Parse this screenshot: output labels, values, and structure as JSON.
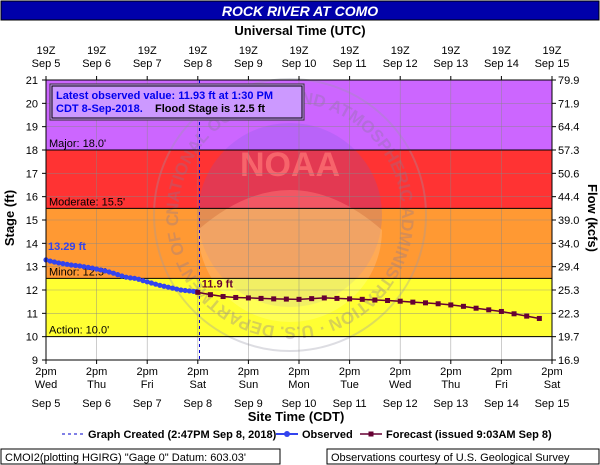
{
  "page": {
    "title": "ROCK RIVER AT COMO",
    "top_axis_title": "Universal Time (UTC)",
    "bottom_axis_title": "Site Time (CDT)",
    "left_axis_title": "Stage (ft)",
    "right_axis_title": "Flow (kcfs)",
    "info_line1": "Latest observed value: 11.93 ft at 1:30 PM",
    "info_line2_date": "CDT 8-Sep-2018.",
    "info_line2_flood": "Flood Stage is 12.5 ft",
    "legend": {
      "created": "Graph Created (2:47PM Sep 8, 2018)",
      "observed": "Observed",
      "forecast": "Forecast (issued 9:03AM Sep 8)"
    },
    "footer_left": "CMOI2(plotting HGIRG) \"Gage 0\" Datum: 603.03'",
    "footer_right": "Observations courtesy of U.S. Geological Survey",
    "watermark": "NATIONAL OCEANIC AND ATMOSPHERIC ADMINISTRATION · U.S. DEPARTMENT OF COMMERCE · NOAA"
  },
  "colors": {
    "title_bar": "#0000aa",
    "major": "#cc66ff",
    "moderate": "#ff3333",
    "minor": "#ff9933",
    "action": "#ffff33",
    "below_action": "#ffffff",
    "observed": "#3344ee",
    "forecast": "#660033",
    "info_box_bg": "#cc99ff"
  },
  "chart_data": {
    "type": "line",
    "title": "ROCK RIVER AT COMO",
    "ylabel": "Stage (ft)",
    "y2label": "Flow (kcfs)",
    "xlabel_bottom": "Site Time (CDT)",
    "xlabel_top": "Universal Time (UTC)",
    "ylim": [
      9,
      21
    ],
    "y_ticks": [
      9,
      10,
      11,
      12,
      13,
      14,
      15,
      16,
      17,
      18,
      19,
      20,
      21
    ],
    "right_ticks": [
      {
        "stage": 9,
        "label": "16.9"
      },
      {
        "stage": 10,
        "label": "19.7"
      },
      {
        "stage": 11,
        "label": "22.3"
      },
      {
        "stage": 12,
        "label": "25.3"
      },
      {
        "stage": 13,
        "label": "29.4"
      },
      {
        "stage": 14,
        "label": "34.0"
      },
      {
        "stage": 15,
        "label": "39.0"
      },
      {
        "stage": 16,
        "label": "44.4"
      },
      {
        "stage": 17,
        "label": "50.6"
      },
      {
        "stage": 18,
        "label": "57.3"
      },
      {
        "stage": 19,
        "label": "64.4"
      },
      {
        "stage": 20,
        "label": "71.9"
      },
      {
        "stage": 21,
        "label": "79.9"
      }
    ],
    "x_range_hours": [
      0,
      240
    ],
    "x_ticks_bottom": [
      {
        "h": 0,
        "time": "2pm",
        "day": "Wed",
        "date": "Sep 5"
      },
      {
        "h": 24,
        "time": "2pm",
        "day": "Thu",
        "date": "Sep 6"
      },
      {
        "h": 48,
        "time": "2pm",
        "day": "Fri",
        "date": "Sep 7"
      },
      {
        "h": 72,
        "time": "2pm",
        "day": "Sat",
        "date": "Sep 8"
      },
      {
        "h": 96,
        "time": "2pm",
        "day": "Sun",
        "date": "Sep 9"
      },
      {
        "h": 120,
        "time": "2pm",
        "day": "Mon",
        "date": "Sep 10"
      },
      {
        "h": 144,
        "time": "2pm",
        "day": "Tue",
        "date": "Sep 11"
      },
      {
        "h": 168,
        "time": "2pm",
        "day": "Wed",
        "date": "Sep 12"
      },
      {
        "h": 192,
        "time": "2pm",
        "day": "Thu",
        "date": "Sep 13"
      },
      {
        "h": 216,
        "time": "2pm",
        "day": "Fri",
        "date": "Sep 14"
      },
      {
        "h": 240,
        "time": "2pm",
        "day": "Sat",
        "date": "Sep 15"
      }
    ],
    "x_ticks_top": [
      {
        "h": 0,
        "time": "19Z",
        "date": "Sep 5"
      },
      {
        "h": 24,
        "time": "19Z",
        "date": "Sep 6"
      },
      {
        "h": 48,
        "time": "19Z",
        "date": "Sep 7"
      },
      {
        "h": 72,
        "time": "19Z",
        "date": "Sep 8"
      },
      {
        "h": 96,
        "time": "19Z",
        "date": "Sep 9"
      },
      {
        "h": 120,
        "time": "19Z",
        "date": "Sep 10"
      },
      {
        "h": 144,
        "time": "19Z",
        "date": "Sep 11"
      },
      {
        "h": 168,
        "time": "19Z",
        "date": "Sep 12"
      },
      {
        "h": 192,
        "time": "19Z",
        "date": "Sep 13"
      },
      {
        "h": 216,
        "time": "19Z",
        "date": "Sep 14"
      },
      {
        "h": 240,
        "time": "19Z",
        "date": "Sep 15"
      }
    ],
    "flood_categories": [
      {
        "name": "Major",
        "label": "Major: 18.0'",
        "from": 18.0,
        "to": 21
      },
      {
        "name": "Moderate",
        "label": "Moderate: 15.5'",
        "from": 15.5,
        "to": 18.0
      },
      {
        "name": "Minor",
        "label": "Minor: 12.5'",
        "from": 12.5,
        "to": 15.5
      },
      {
        "name": "Action",
        "label": "Action: 10.0'",
        "from": 10.0,
        "to": 12.5
      }
    ],
    "graph_created_hour": 72.8,
    "series": [
      {
        "name": "Observed",
        "label_start": "13.29 ft",
        "x_hours": [
          0,
          2,
          4,
          6,
          8,
          10,
          12,
          14,
          16,
          18,
          20,
          22,
          24,
          26,
          28,
          30,
          32,
          34,
          36,
          38,
          40,
          42,
          44,
          46,
          48,
          50,
          52,
          54,
          56,
          58,
          60,
          62,
          64,
          66,
          68,
          70,
          71.5
        ],
        "values": [
          13.29,
          13.24,
          13.2,
          13.16,
          13.13,
          13.1,
          13.07,
          13.05,
          13.03,
          13.0,
          12.97,
          12.94,
          12.9,
          12.86,
          12.82,
          12.77,
          12.72,
          12.66,
          12.6,
          12.55,
          12.52,
          12.5,
          12.46,
          12.4,
          12.35,
          12.3,
          12.25,
          12.2,
          12.16,
          12.12,
          12.08,
          12.04,
          12.0,
          11.98,
          11.96,
          11.94,
          11.93
        ]
      },
      {
        "name": "Forecast",
        "label_start": "11.9 ft",
        "x_hours": [
          72,
          78,
          84,
          90,
          96,
          102,
          108,
          114,
          120,
          126,
          132,
          138,
          144,
          150,
          156,
          162,
          168,
          174,
          180,
          186,
          192,
          198,
          204,
          210,
          216,
          222,
          228,
          234
        ],
        "values": [
          11.9,
          11.8,
          11.72,
          11.68,
          11.66,
          11.64,
          11.62,
          11.61,
          11.6,
          11.63,
          11.66,
          11.64,
          11.62,
          11.6,
          11.57,
          11.55,
          11.52,
          11.48,
          11.45,
          11.41,
          11.36,
          11.3,
          11.22,
          11.15,
          11.08,
          10.98,
          10.88,
          10.78
        ]
      }
    ]
  }
}
